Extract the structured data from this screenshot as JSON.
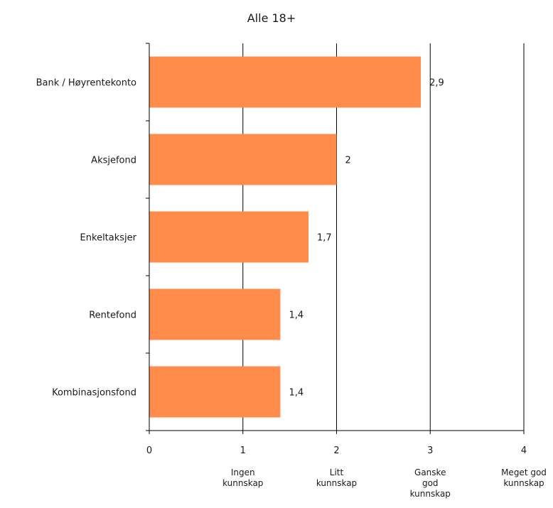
{
  "chart_data": {
    "type": "bar",
    "orientation": "horizontal",
    "title": "Alle 18+",
    "categories": [
      "Bank / Høyrentekonto",
      "Aksjefond",
      "Enkeltaksjer",
      "Rentefond",
      "Kombinasjonsfond"
    ],
    "values": [
      2.9,
      2,
      1.7,
      1.4,
      1.4
    ],
    "data_labels": [
      "2,9",
      "2",
      "1,7",
      "1,4",
      "1,4"
    ],
    "xlim": [
      0,
      4
    ],
    "x_ticks": [
      "0",
      "1",
      "2",
      "3",
      "4"
    ],
    "x_tick_sublabels": [
      {
        "x": 1,
        "lines": [
          "Ingen",
          "kunnskap"
        ]
      },
      {
        "x": 2,
        "lines": [
          "Litt",
          "kunnskap"
        ]
      },
      {
        "x": 3,
        "lines": [
          "Ganske",
          "god",
          "kunnskap"
        ]
      },
      {
        "x": 4,
        "lines": [
          "Meget god",
          "kunnskap"
        ]
      }
    ],
    "grid": "vertical",
    "bar_color": "#ff8c4b",
    "xlabel": "",
    "ylabel": ""
  }
}
